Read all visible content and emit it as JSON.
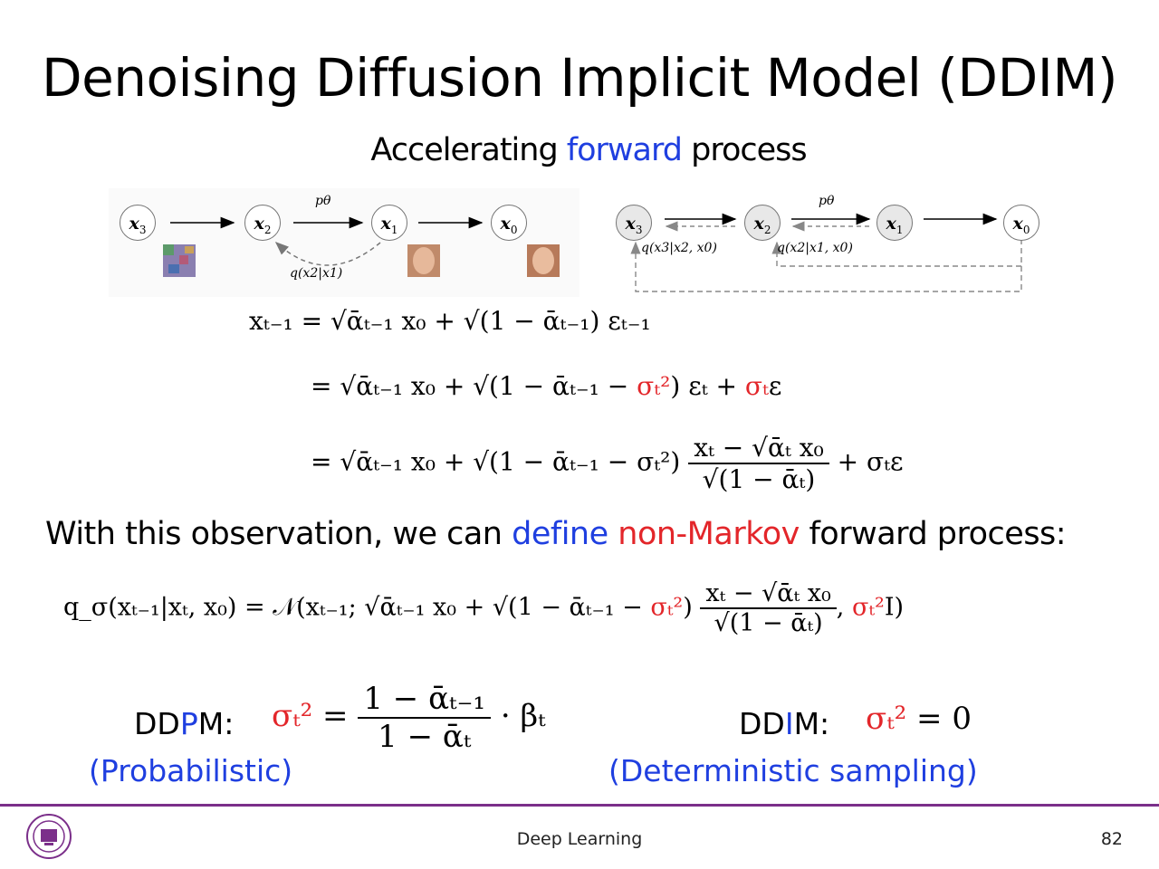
{
  "slide": {
    "title": "Denoising Diffusion Implicit Model (DDIM)",
    "subtitle": {
      "part1": "Accelerating ",
      "part2": "forward",
      "part3": " process"
    }
  },
  "diagram_left": {
    "nodes": [
      "x3",
      "x2",
      "x1",
      "x0"
    ],
    "top_label": "pθ",
    "bottom_label": "q(x2|x1)"
  },
  "diagram_right": {
    "nodes": [
      "x3",
      "x2",
      "x1",
      "x0"
    ],
    "top_label": "pθ",
    "label_a": "q(x3|x2, x0)",
    "label_b": "q(x2|x1, x0)"
  },
  "equations": {
    "eq1": "xₜ₋₁ = √ᾱₜ₋₁ x₀ + √(1 − ᾱₜ₋₁) εₜ₋₁",
    "eq2_a": "= √ᾱₜ₋₁ x₀ + √(1 − ᾱₜ₋₁ − ",
    "eq2_sigma": "σₜ²",
    "eq2_b": ") εₜ + ",
    "eq2_sigma2": "σₜ",
    "eq2_c": "ε",
    "eq3_a": "= √ᾱₜ₋₁ x₀ + √(1 − ᾱₜ₋₁ − σₜ²)",
    "eq3_num": "xₜ − √ᾱₜ x₀",
    "eq3_den": "√(1 − ᾱₜ)",
    "eq3_b": "+ σₜε"
  },
  "sentence": {
    "part1": "With this observation, we can ",
    "part2": "define",
    "part3": " non-Markov",
    "part4": " forward process:"
  },
  "q_sigma": {
    "lhs": "q_σ(xₜ₋₁|xₜ, x₀) = 𝒩(xₜ₋₁; √ᾱₜ₋₁ x₀ + √(1 − ᾱₜ₋₁ − ",
    "sigma": "σₜ²",
    "mid": ")",
    "num": "xₜ − √ᾱₜ x₀",
    "den": "√(1 − ᾱₜ)",
    "tail1": ", ",
    "sigma_I": "σₜ²",
    "tail2": "I)"
  },
  "ddpm": {
    "label_a": "DD",
    "label_b": "P",
    "label_c": "M:",
    "sigma": "σₜ²",
    "eq": "=",
    "num": "1 − ᾱₜ₋₁",
    "den": "1 − ᾱₜ",
    "tail": "· βₜ",
    "note": "(Probabilistic)"
  },
  "ddim": {
    "label_a": "DD",
    "label_b": "I",
    "label_c": "M:",
    "sigma": "σₜ²",
    "eq": "= 0",
    "note": "(Deterministic sampling)"
  },
  "footer": {
    "center": "Deep Learning",
    "page": "82"
  },
  "colors": {
    "blue": "#1f3fe0",
    "red": "#e3262a",
    "footer_rule": "#7b2f8a"
  }
}
